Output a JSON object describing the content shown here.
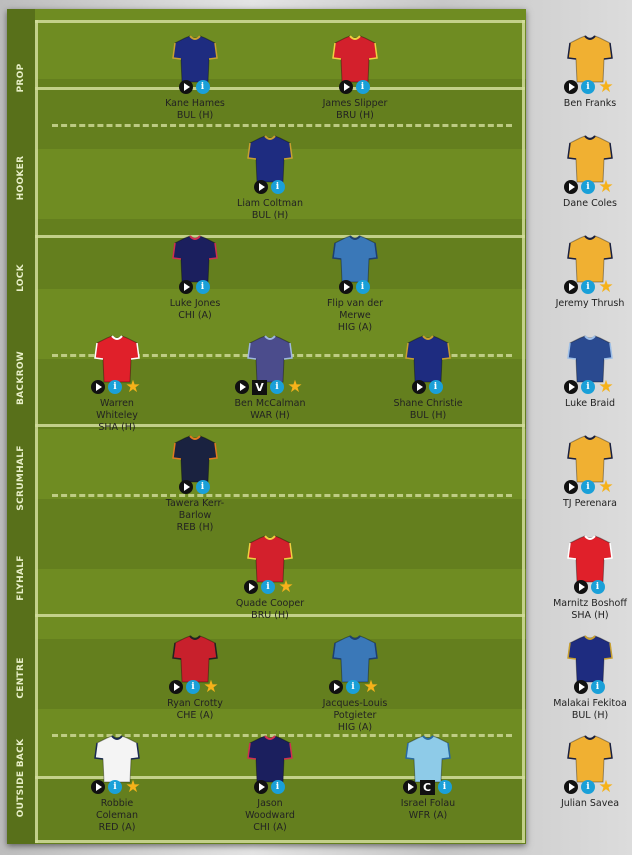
{
  "positions": [
    "PROP",
    "HOOKER",
    "LOCK",
    "BACKROW",
    "SCRUMHALF",
    "FLYHALF",
    "CENTRE",
    "OUTSIDE BACK"
  ],
  "icons": {
    "play": "play-icon",
    "info": "info-icon",
    "star": "star-icon"
  },
  "field": {
    "rows": [
      [
        {
          "name": "Kane Hames",
          "team": "BUL (H)",
          "jersey": "#1e2c80",
          "trim": "#c8a030",
          "star": false,
          "badge": ""
        },
        {
          "name": "James Slipper",
          "team": "BRU (H)",
          "jersey": "#d3202c",
          "trim": "#f0d040",
          "star": false,
          "badge": ""
        }
      ],
      [
        {
          "name": "Liam Coltman",
          "team": "BUL (H)",
          "jersey": "#1e2c80",
          "trim": "#c8a030",
          "star": false,
          "badge": ""
        }
      ],
      [
        {
          "name": "Luke Jones",
          "team": "CHI (A)",
          "jersey": "#1b1f5e",
          "trim": "#d03050",
          "star": false,
          "badge": ""
        },
        {
          "name": "Flip van der Merwe",
          "team": "HIG (A)",
          "jersey": "#3a78b8",
          "trim": "#1e3f70",
          "star": false,
          "badge": ""
        }
      ],
      [
        {
          "name": "Warren Whiteley",
          "team": "SHA (H)",
          "jersey": "#e0202a",
          "trim": "#ffffff",
          "star": true,
          "badge": ""
        },
        {
          "name": "Ben McCalman",
          "team": "WAR (H)",
          "jersey": "#4b4c8c",
          "trim": "#9fb8e0",
          "star": true,
          "badge": "V"
        },
        {
          "name": "Shane Christie",
          "team": "BUL (H)",
          "jersey": "#1e2c80",
          "trim": "#c8a030",
          "star": false,
          "badge": ""
        }
      ],
      [
        {
          "name": "Tawera Kerr-Barlow",
          "team": "REB (H)",
          "jersey": "#1a2240",
          "trim": "#e07a20",
          "star": false,
          "badge": ""
        }
      ],
      [
        {
          "name": "Quade Cooper",
          "team": "BRU (H)",
          "jersey": "#d3202c",
          "trim": "#f0d040",
          "star": true,
          "badge": ""
        }
      ],
      [
        {
          "name": "Ryan Crotty",
          "team": "CHE (A)",
          "jersey": "#c8202c",
          "trim": "#222222",
          "star": true,
          "badge": ""
        },
        {
          "name": "Jacques-Louis Potgieter",
          "team": "HIG (A)",
          "jersey": "#3a78b8",
          "trim": "#1e3f70",
          "star": true,
          "badge": ""
        }
      ],
      [
        {
          "name": "Robbie Coleman",
          "team": "RED (A)",
          "jersey": "#f4f4f4",
          "trim": "#1a2a50",
          "star": true,
          "badge": ""
        },
        {
          "name": "Jason Woodward",
          "team": "CHI (A)",
          "jersey": "#1b1f5e",
          "trim": "#d03050",
          "star": false,
          "badge": ""
        },
        {
          "name": "Israel Folau",
          "team": "WFR (A)",
          "jersey": "#8ecbe8",
          "trim": "#2a6aa0",
          "star": false,
          "badge": "C"
        }
      ]
    ]
  },
  "bench": [
    {
      "name": "Ben Franks",
      "team": "",
      "jersey": "#f0b032",
      "trim": "#1a2040",
      "star": true
    },
    {
      "name": "Dane Coles",
      "team": "",
      "jersey": "#f0b032",
      "trim": "#1a2040",
      "star": true
    },
    {
      "name": "Jeremy Thrush",
      "team": "",
      "jersey": "#f0b032",
      "trim": "#1a2040",
      "star": true
    },
    {
      "name": "Luke Braid",
      "team": "",
      "jersey": "#2a4a90",
      "trim": "#9fc0e8",
      "star": true
    },
    {
      "name": "TJ Perenara",
      "team": "",
      "jersey": "#f0b032",
      "trim": "#1a2040",
      "star": true
    },
    {
      "name": "Marnitz Boshoff",
      "team": "SHA (H)",
      "jersey": "#e0202a",
      "trim": "#ffffff",
      "star": false
    },
    {
      "name": "Malakai Fekitoa",
      "team": "BUL (H)",
      "jersey": "#1e2c80",
      "trim": "#c8a030",
      "star": false
    },
    {
      "name": "Julian Savea",
      "team": "",
      "jersey": "#f0b032",
      "trim": "#1a2040",
      "star": true
    }
  ]
}
